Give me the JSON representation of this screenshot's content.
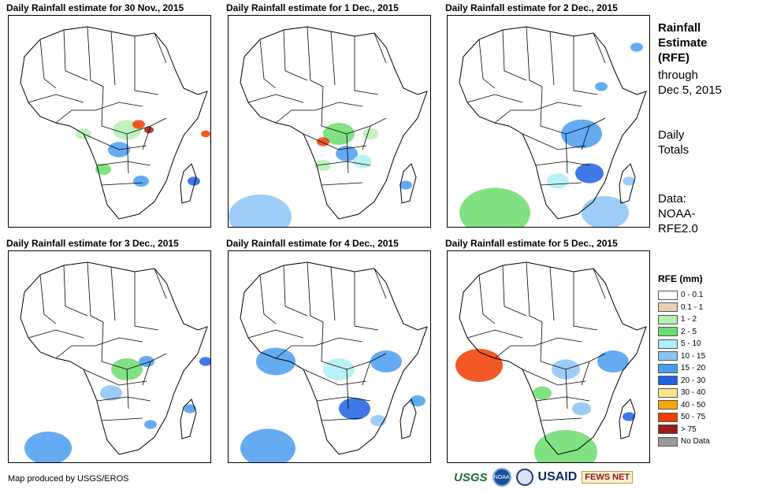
{
  "panels": [
    {
      "title": "Daily Rainfall estimate for 30 Nov., 2015"
    },
    {
      "title": "Daily Rainfall estimate for 1 Dec., 2015"
    },
    {
      "title": "Daily Rainfall estimate for 2 Dec., 2015"
    },
    {
      "title": "Daily Rainfall estimate for 3 Dec., 2015"
    },
    {
      "title": "Daily Rainfall estimate for 4 Dec., 2015"
    },
    {
      "title": "Daily Rainfall estimate for 5 Dec., 2015"
    }
  ],
  "side": {
    "title_line1": "Rainfall",
    "title_line2": "Estimate",
    "title_line3": "(RFE)",
    "through_line1": "through",
    "through_line2": "Dec 5, 2015",
    "totals_line1": "Daily",
    "totals_line2": "Totals",
    "data_line1": "Data:",
    "data_line2": "NOAA-",
    "data_line3": "RFE2.0"
  },
  "legend": {
    "title": "RFE (mm)",
    "items": [
      {
        "label": "0 - 0.1",
        "color": "#ffffff"
      },
      {
        "label": "0.1 - 1",
        "color": "#e8d2b0"
      },
      {
        "label": "1 - 2",
        "color": "#b4f0b4"
      },
      {
        "label": "2 - 5",
        "color": "#6cdc6c"
      },
      {
        "label": "5 - 10",
        "color": "#aeeef5"
      },
      {
        "label": "10 - 15",
        "color": "#8cc4f5"
      },
      {
        "label": "15 - 20",
        "color": "#4a9cf0"
      },
      {
        "label": "20 - 30",
        "color": "#1f62e0"
      },
      {
        "label": "30 - 40",
        "color": "#ffe38a"
      },
      {
        "label": "40 - 50",
        "color": "#f5a800"
      },
      {
        "label": "50 - 75",
        "color": "#f03c00"
      },
      {
        "label": "> 75",
        "color": "#a01818"
      },
      {
        "label": "No Data",
        "color": "#999999"
      }
    ]
  },
  "footer": {
    "credit": "Map produced by USGS/EROS",
    "logo_usgs": "USGS",
    "logo_noaa": "NOAA",
    "logo_usaid": "USAID",
    "logo_fews": "FEWS NET"
  }
}
